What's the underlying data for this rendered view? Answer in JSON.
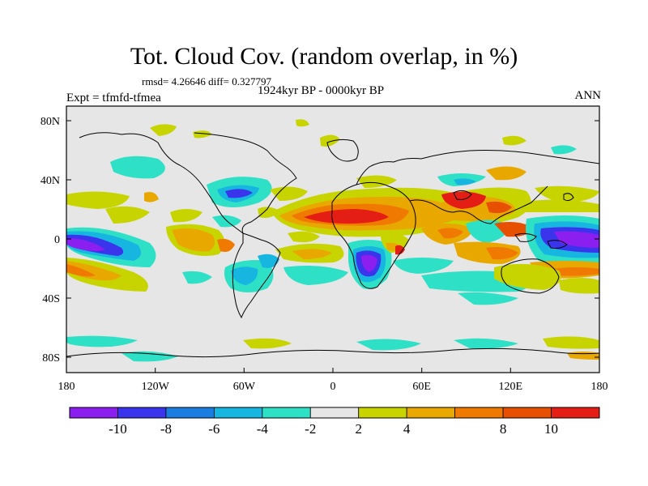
{
  "title": "Tot. Cloud Cov. (random overlap, in %)",
  "stats": "rmsd= 4.26646 diff= 0.327797",
  "experiment": "Expt = tfmfd-tfmea",
  "period": "1924kyr BP - 0000kyr BP",
  "season": "ANN",
  "axes": {
    "lat_ticks": [
      "80N",
      "40N",
      "0",
      "40S",
      "80S"
    ],
    "lon_ticks": [
      "180",
      "120W",
      "60W",
      "0",
      "60E",
      "120E",
      "180"
    ]
  },
  "colorbar": {
    "labels": [
      "-10",
      "-8",
      "-6",
      "-4",
      "-2",
      "2",
      "4",
      "8",
      "10"
    ],
    "colors": [
      "#8a1ff0",
      "#3a34ec",
      "#1a7ee0",
      "#17b6e0",
      "#2ee0c6",
      "#e6e6e6",
      "#c8d400",
      "#e8a800",
      "#f07a00",
      "#e65000",
      "#e41e14"
    ]
  },
  "colors": {
    "background": "#e6e6e6",
    "coast": "#000000"
  }
}
